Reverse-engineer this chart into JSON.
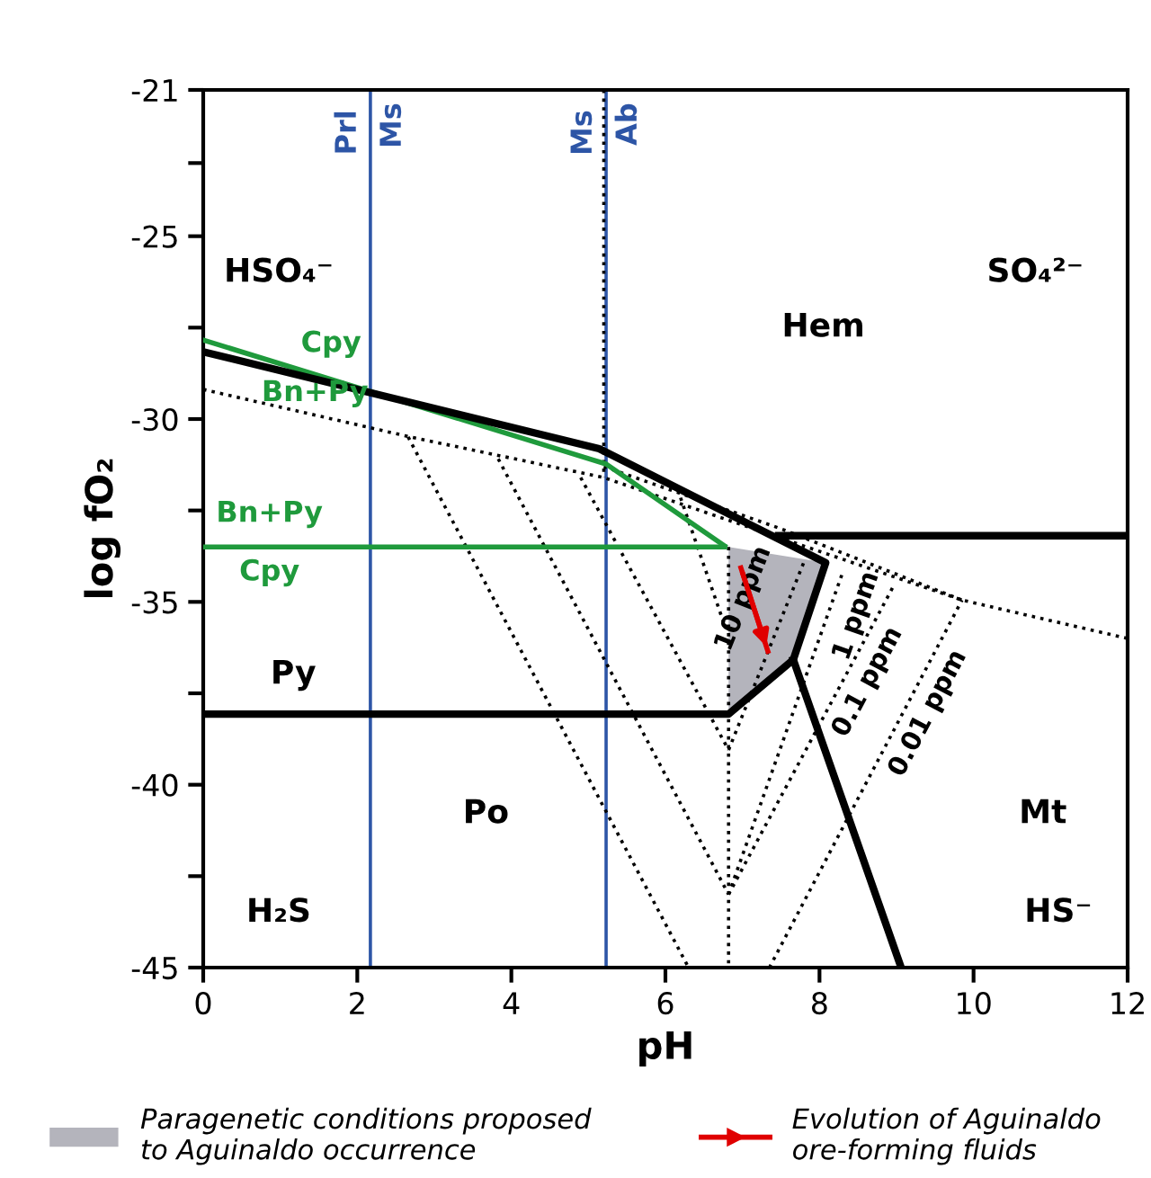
{
  "chart_data": {
    "type": "line",
    "xlabel": "pH",
    "ylabel": "log fO₂",
    "xlim": [
      0,
      12
    ],
    "xticks": [
      0,
      2,
      4,
      6,
      8,
      10,
      12
    ],
    "ylim": [
      -45,
      -21
    ],
    "yticks": [
      -21,
      {
        "value": -23,
        "label": null
      },
      -25,
      {
        "value": -27.5,
        "label": null
      },
      -30,
      {
        "value": -32.5,
        "label": null
      },
      -35,
      {
        "value": -37.5,
        "label": null
      },
      -40,
      {
        "value": -42.5,
        "label": null
      },
      -45
    ],
    "grid": false,
    "legend": "bottom",
    "ref_lines": [
      {
        "axis": "x",
        "value": 2.17,
        "label": "Prl",
        "color": "#2d55a6"
      },
      {
        "axis": "x",
        "value": 5.23,
        "label": "Ms",
        "color": "#2d55a6"
      }
    ],
    "annotations": [
      "HSO₄⁻",
      "SO₄²⁻",
      "Hem",
      "Py",
      "Po",
      "Mt",
      "H₂S",
      "HS⁻",
      "Cpy",
      "Bn+Py",
      "Bn+Py",
      "Cpy",
      {
        "text": "Ms",
        "x": 2.17,
        "y": -21.35
      },
      {
        "text": "Ab",
        "x": 5.23,
        "y": -21.35
      }
    ],
    "series": [
      {
        "type": "area",
        "name": "Paragenetic conditions proposed\nto Aguinaldo occurrence",
        "color": "#b4b4bc",
        "x": [
          6.82,
          8.08,
          7.66,
          6.82
        ],
        "values": [
          -33.5,
          -33.93,
          -36.58,
          -38.07
        ]
      },
      {
        "color": "#000000",
        "line_style": "dotted",
        "x": [
          0,
          2.69,
          5.2,
          9.85,
          12
        ],
        "values": [
          -29.19,
          -30.49,
          -31.6,
          -34.95,
          -36.0
        ]
      },
      {
        "color": "#000000",
        "line_style": "dotted",
        "x": [
          5.2,
          7.5,
          9.85
        ],
        "values": [
          -31.3,
          -33.0,
          -34.95
        ]
      },
      {
        "color": "#000000",
        "line_style": "dotted",
        "x": [
          5.2,
          5.2
        ],
        "values": [
          -21,
          -31.6
        ]
      },
      {
        "color": "#000000",
        "line_style": "dotted",
        "x": [
          6.82,
          6.82
        ],
        "values": [
          -33.5,
          -45
        ]
      },
      {
        "color": "#000000",
        "line_style": "dotted",
        "x": [
          2.66,
          6.3
        ],
        "values": [
          -30.49,
          -45
        ]
      },
      {
        "color": "#000000",
        "line_style": "dotted",
        "x": [
          3.83,
          6.82
        ],
        "values": [
          -31.09,
          -43.0
        ]
      },
      {
        "color": "#000000",
        "line_style": "dotted",
        "x": [
          4.9,
          6.82
        ],
        "values": [
          -31.6,
          -39.05
        ]
      },
      {
        "color": "#000000",
        "line_style": "dotted",
        "x": [
          6.16,
          6.77
        ],
        "values": [
          -31.93,
          -35.65
        ]
      },
      {
        "color": "#000000",
        "line_style": "dotted",
        "name": "10 ppm",
        "x": [
          6.82,
          7.8
        ],
        "values": [
          -39.05,
          -33.9
        ]
      },
      {
        "color": "#000000",
        "line_style": "dotted",
        "name": "1 ppm",
        "x": [
          6.82,
          8.29
        ],
        "values": [
          -43.0,
          -34.26
        ]
      },
      {
        "color": "#000000",
        "line_style": "dotted",
        "name": "0.1 ppm",
        "x": [
          6.82,
          8.97
        ],
        "values": [
          -43.0,
          -34.53
        ]
      },
      {
        "color": "#000000",
        "line_style": "dotted",
        "name": "0.01 ppm",
        "x": [
          7.35,
          9.85
        ],
        "values": [
          -45,
          -34.95
        ]
      },
      {
        "color": "#1f9a3c",
        "line_style": "solid",
        "x": [
          0,
          5.23,
          6.77
        ],
        "values": [
          -27.84,
          -31.23,
          -33.47
        ]
      },
      {
        "color": "#1f9a3c",
        "line_style": "solid",
        "x": [
          0,
          6.77
        ],
        "values": [
          -33.5,
          -33.5
        ]
      },
      {
        "color": "#000000",
        "line_style": "solid",
        "x": [
          0,
          5.14,
          8.08,
          7.66,
          6.82,
          0
        ],
        "values": [
          -28.16,
          -30.81,
          -33.93,
          -36.58,
          -38.07,
          -38.07
        ]
      },
      {
        "color": "#000000",
        "line_style": "solid",
        "x": [
          7.47,
          12
        ],
        "values": [
          -33.19,
          -33.19
        ]
      },
      {
        "color": "#000000",
        "line_style": "solid",
        "x": [
          7.66,
          9.06
        ],
        "values": [
          -36.58,
          -45
        ]
      },
      {
        "color": "#e00000",
        "line_style": "solid",
        "name": "Evolution of Aguinaldo\nore-forming fluids",
        "x": [
          6.98,
          7.33
        ],
        "values": [
          -34.07,
          -36.35
        ]
      }
    ]
  }
}
